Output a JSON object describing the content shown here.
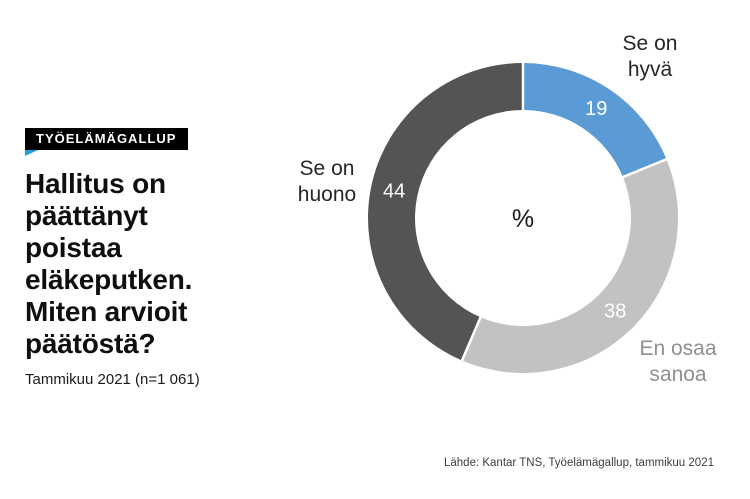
{
  "badge": {
    "label": "TYÖELÄMÄGALLUP",
    "bg_color": "#000000",
    "text_color": "#ffffff",
    "accent_triangle_color": "#1d9dd9"
  },
  "heading": {
    "title": "Hallitus on päättänyt poistaa eläkeputken. Miten arvioit päätöstä?",
    "title_lines": "Hallitus on\npäättänyt\npoistaa\neläkeputken.\nMiten arvioit\npäätöstä?",
    "subtitle": "Tammikuu 2021 (n=1 061)"
  },
  "chart_data": {
    "type": "pie",
    "subtype": "donut",
    "unit": "%",
    "center_label": "%",
    "start_angle_deg": 0,
    "direction": "clockwise",
    "categories": [
      "Se on hyvä",
      "En osaa sanoa",
      "Se on huono"
    ],
    "values": [
      19,
      38,
      44
    ],
    "segments": [
      {
        "label": "Se on hyvä",
        "label_lines": "Se on\nhyvä",
        "value": 19,
        "color": "#5b9bd5",
        "value_text_color": "#ffffff",
        "label_color": "#262626"
      },
      {
        "label": "En osaa sanoa",
        "label_lines": "En osaa\nsanoa",
        "value": 38,
        "color": "#c2c2c2",
        "value_text_color": "#ffffff",
        "label_color": "#8f8f8f"
      },
      {
        "label": "Se on huono",
        "label_lines": "Se on\nhuono",
        "value": 44,
        "color": "#545454",
        "value_text_color": "#ffffff",
        "label_color": "#262626"
      }
    ]
  },
  "source": "Lähde: Kantar TNS, Työelämägallup, tammikuu 2021"
}
